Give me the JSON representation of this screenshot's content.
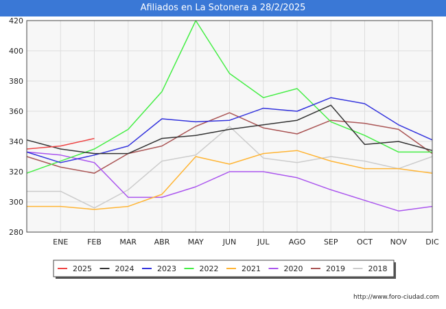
{
  "header": {
    "title": "Afiliados en La Sotonera a 28/2/2025"
  },
  "credit": "http://www.foro-ciudad.com",
  "chart_data": {
    "type": "line",
    "categories": [
      "",
      "ENE",
      "FEB",
      "MAR",
      "ABR",
      "MAY",
      "JUN",
      "JUL",
      "AGO",
      "SEP",
      "OCT",
      "NOV",
      "DIC"
    ],
    "ylim": [
      280,
      420
    ],
    "yticks": [
      280,
      300,
      320,
      340,
      360,
      380,
      400,
      420
    ],
    "grid": true,
    "legend_position": "bottom",
    "series": [
      {
        "name": "2025",
        "color": "#ee4444",
        "values": [
          335,
          337,
          342,
          null,
          null,
          null,
          null,
          null,
          null,
          null,
          null,
          null,
          null
        ]
      },
      {
        "name": "2024",
        "color": "#333333",
        "values": [
          341,
          335,
          332,
          332,
          342,
          344,
          348,
          351,
          354,
          364,
          338,
          340,
          334
        ]
      },
      {
        "name": "2023",
        "color": "#3333dd",
        "values": [
          333,
          326,
          331,
          337,
          355,
          353,
          354,
          362,
          360,
          369,
          365,
          351,
          341
        ]
      },
      {
        "name": "2022",
        "color": "#44ee44",
        "values": [
          319,
          327,
          335,
          348,
          373,
          420,
          385,
          369,
          375,
          353,
          344,
          333,
          333
        ]
      },
      {
        "name": "2021",
        "color": "#ffb433",
        "values": [
          297,
          297,
          295,
          297,
          305,
          330,
          325,
          332,
          334,
          327,
          322,
          322,
          319
        ]
      },
      {
        "name": "2020",
        "color": "#aa55ee",
        "values": [
          333,
          331,
          326,
          303,
          303,
          310,
          320,
          320,
          316,
          308,
          301,
          294,
          297
        ]
      },
      {
        "name": "2019",
        "color": "#aa5555",
        "values": [
          330,
          323,
          319,
          332,
          337,
          350,
          359,
          349,
          345,
          354,
          352,
          348,
          332
        ]
      },
      {
        "name": "2018",
        "color": "#cccccc",
        "values": [
          307,
          307,
          296,
          308,
          327,
          331,
          350,
          329,
          326,
          330,
          327,
          322,
          330
        ]
      }
    ]
  }
}
